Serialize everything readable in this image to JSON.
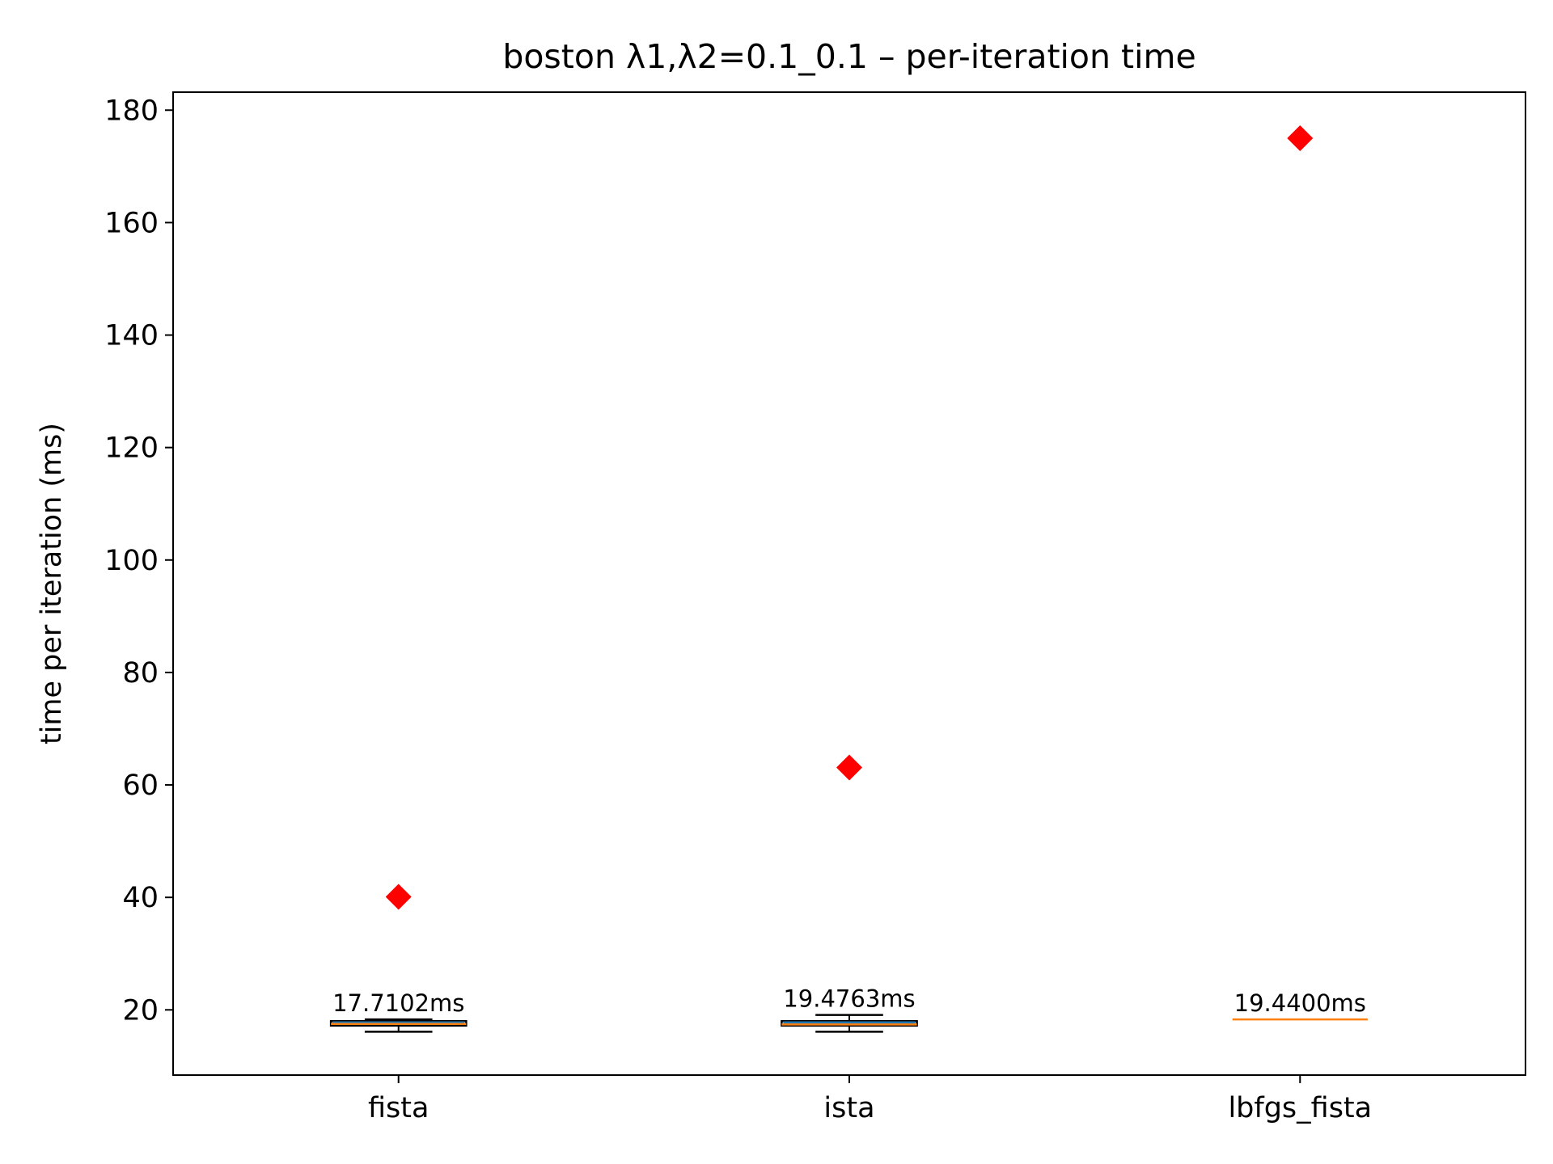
{
  "chart_data": {
    "type": "box",
    "title": "boston   λ1,λ2=0.1_0.1  –  per-iteration time",
    "xlabel": "",
    "ylabel": "time per iteration (ms)",
    "ylim": [
      8.4,
      183.2
    ],
    "yticks": [
      20,
      40,
      60,
      80,
      100,
      120,
      140,
      160,
      180
    ],
    "grid": false,
    "categories": [
      "fista",
      "ista",
      "lbfgs_fista"
    ],
    "boxes": [
      {
        "category": "fista",
        "whisker_low": 16.1,
        "q1": 17.2,
        "median": 17.5,
        "q3": 18.0,
        "whisker_high": 18.3,
        "outlier": 40.1,
        "label": "17.7102ms"
      },
      {
        "category": "ista",
        "whisker_low": 16.1,
        "q1": 17.2,
        "median": 17.4,
        "q3": 18.0,
        "whisker_high": 19.1,
        "outlier": 63.1,
        "label": "19.4763ms"
      },
      {
        "category": "lbfgs_fista",
        "whisker_low": 18.3,
        "q1": 18.3,
        "median": 18.3,
        "q3": 18.3,
        "whisker_high": 18.3,
        "outlier": 175.0,
        "label": "19.4400ms"
      }
    ],
    "colors": {
      "box": "#1f77b4",
      "median": "#ff7f0e",
      "whisker": "#000000",
      "outlier": "#ff0000",
      "axes": "#000000"
    }
  }
}
